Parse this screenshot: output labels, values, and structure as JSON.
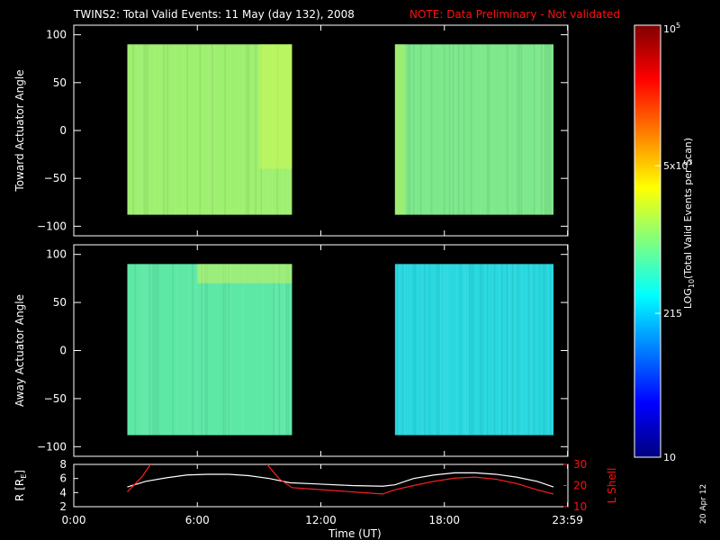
{
  "header": {
    "title": "TWINS2: Total Valid Events: 11 May (day 132), 2008",
    "note": "NOTE: Data Preliminary - Not validated"
  },
  "side_stamp": "20 Apr 12",
  "colors": {
    "background": "#000000",
    "axes": "#ffffff",
    "note": "#ff1010",
    "r_trace": "#ffffff",
    "lshell_trace": "#ff2020"
  },
  "colorbar": {
    "label_prefix": "LOG",
    "label_sub": "10",
    "label_suffix": "(Total Valid  Events per Scan)",
    "scale": "log",
    "range": [
      10,
      100000
    ],
    "ticks": [
      {
        "value": 100000,
        "base": "10",
        "exp": "5"
      },
      {
        "value": 5000,
        "base": "5x10",
        "exp": "3"
      },
      {
        "value": 215,
        "base": "215",
        "exp": ""
      },
      {
        "value": 10,
        "base": "10",
        "exp": ""
      }
    ],
    "colormap": [
      "#00007f",
      "#0000ff",
      "#007fff",
      "#00ffff",
      "#7fff7f",
      "#ffff00",
      "#ff7f00",
      "#ff0000",
      "#7f0000"
    ]
  },
  "time_ticks": [
    "0:00",
    "6:00",
    "12:00",
    "18:00",
    "23:59"
  ],
  "time_tick_hours": [
    0,
    6,
    12,
    18,
    23.983
  ],
  "xlabel": "Time (UT)",
  "chart_data": [
    {
      "type": "heatmap",
      "ylabel": "Toward Actuator Angle",
      "xlim_hours": [
        0,
        24
      ],
      "ylim": [
        -110,
        110
      ],
      "yticks": [
        100,
        50,
        0,
        -50,
        -100
      ],
      "blocks": [
        {
          "t_start": 2.6,
          "t_end": 10.6,
          "angle_min": -88,
          "angle_max": 90,
          "base_color": "#9ef070",
          "bright_features": [
            {
              "t_start": 9.0,
              "t_end": 10.6,
              "angle_min": -40,
              "angle_max": 90,
              "color": "#cdfa55"
            }
          ]
        },
        {
          "t_start": 15.6,
          "t_end": 23.3,
          "angle_min": -88,
          "angle_max": 90,
          "base_color": "#7de88c",
          "bright_features": [
            {
              "t_start": 15.6,
              "t_end": 16.1,
              "angle_min": -88,
              "angle_max": 90,
              "color": "#b7f060"
            }
          ]
        }
      ]
    },
    {
      "type": "heatmap",
      "ylabel": "Away Actuator Angle",
      "xlim_hours": [
        0,
        24
      ],
      "ylim": [
        -110,
        110
      ],
      "yticks": [
        100,
        50,
        0,
        -50,
        -100
      ],
      "blocks": [
        {
          "t_start": 2.6,
          "t_end": 10.6,
          "angle_min": -88,
          "angle_max": 90,
          "base_color": "#5ee8a6",
          "bright_features": [
            {
              "t_start": 6.0,
              "t_end": 10.6,
              "angle_min": 70,
              "angle_max": 90,
              "color": "#cdf25a"
            }
          ]
        },
        {
          "t_start": 15.6,
          "t_end": 23.3,
          "angle_min": -88,
          "angle_max": 90,
          "base_color": "#2ad8e0",
          "bright_features": []
        }
      ]
    },
    {
      "type": "line",
      "ylabel_left": "R [R",
      "ylabel_left_sub": "E",
      "ylabel_left_end": "]",
      "ylabel_right": "L Shell",
      "ylim_left": [
        2,
        8
      ],
      "yticks_left": [
        2,
        4,
        6,
        8
      ],
      "ylim_right": [
        10,
        30
      ],
      "yticks_right": [
        10,
        20,
        30
      ],
      "series": [
        {
          "axis": "left",
          "color": "#ffffff",
          "x": [
            2.6,
            3.5,
            4.5,
            5.5,
            6.5,
            7.5,
            8.5,
            9.5,
            10.5,
            12.0,
            13.5,
            15.0,
            15.6,
            16.5,
            17.5,
            18.5,
            19.5,
            20.5,
            21.5,
            22.5,
            23.3
          ],
          "y": [
            4.8,
            5.6,
            6.1,
            6.5,
            6.6,
            6.6,
            6.4,
            6.0,
            5.4,
            5.2,
            5.0,
            4.9,
            5.1,
            6.0,
            6.5,
            6.8,
            6.8,
            6.6,
            6.2,
            5.6,
            4.8
          ]
        },
        {
          "axis": "right",
          "color": "#ff2020",
          "x": [
            2.6,
            3.3,
            3.8,
            9.3,
            10.0,
            10.6,
            15.0,
            15.6,
            16.5,
            17.5,
            18.5,
            19.5,
            20.5,
            21.5,
            22.5,
            23.3
          ],
          "y": [
            17,
            24,
            31,
            31,
            23,
            19,
            16,
            18,
            20,
            22,
            23.5,
            24,
            23,
            21,
            18,
            16
          ]
        }
      ]
    }
  ]
}
